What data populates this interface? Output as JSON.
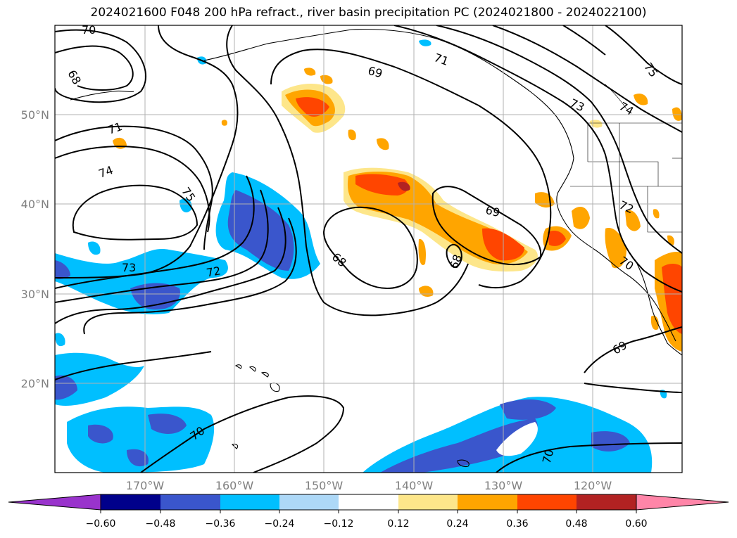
{
  "title": "2024021600 F048 200 hPa refract., river basin precipitation PC (2024021800 - 2024022100)",
  "map": {
    "lat_labels": [
      "50°N",
      "40°N",
      "30°N",
      "20°N"
    ],
    "lon_labels": [
      "170°W",
      "160°W",
      "150°W",
      "140°W",
      "130°W",
      "120°W"
    ],
    "contour_labels": [
      "70",
      "68",
      "69",
      "71",
      "71",
      "74",
      "75",
      "73",
      "72",
      "75",
      "73",
      "74",
      "69",
      "72",
      "70",
      "68",
      "68",
      "69",
      "70",
      "70"
    ]
  },
  "colorbar": {
    "colors": [
      "#9933cc",
      "#00008b",
      "#3a56cc",
      "#00bfff",
      "#add8f7",
      "#ffffff",
      "#fde68a",
      "#ffa500",
      "#ff4500",
      "#b22222",
      "#ff85a8"
    ],
    "tick_labels": [
      "−0.60",
      "−0.48",
      "−0.36",
      "−0.24",
      "−0.12",
      "0.12",
      "0.24",
      "0.36",
      "0.48",
      "0.60"
    ]
  }
}
